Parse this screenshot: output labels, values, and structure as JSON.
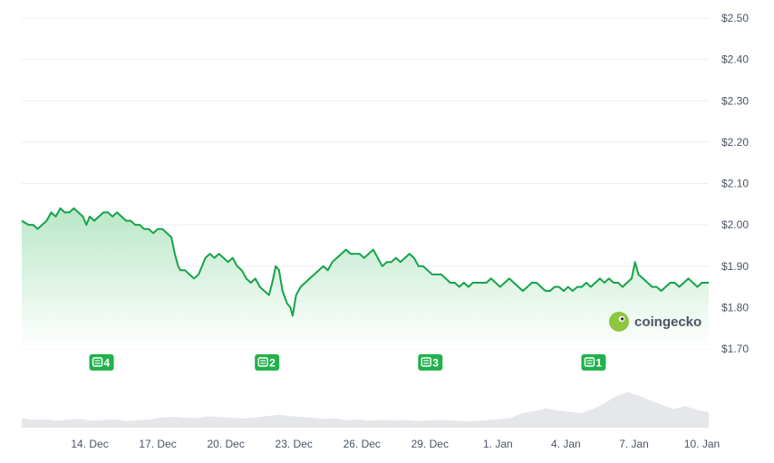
{
  "chart_data": {
    "type": "area",
    "y_ticks": [
      "$2.50",
      "$2.40",
      "$2.30",
      "$2.20",
      "$2.10",
      "$2.00",
      "$1.90",
      "$1.80",
      "$1.70"
    ],
    "ylim": [
      1.7,
      2.5
    ],
    "x_ticks": [
      "14. Dec",
      "17. Dec",
      "20. Dec",
      "23. Dec",
      "26. Dec",
      "29. Dec",
      "1. Jan",
      "4. Jan",
      "7. Jan",
      "10. Jan"
    ],
    "x_tick_days": [
      3,
      6,
      9,
      12,
      15,
      18,
      21,
      24,
      27,
      30
    ],
    "x_range_days": [
      0,
      30.3
    ],
    "line_color": "#16a34a",
    "area_top_color": "#b5e6c4",
    "volume_color": "#e6e7eb",
    "grid": true,
    "series": [
      {
        "points": [
          [
            0.0,
            2.01
          ],
          [
            0.3,
            2.0
          ],
          [
            0.5,
            2.0
          ],
          [
            0.7,
            1.99
          ],
          [
            0.9,
            2.0
          ],
          [
            1.1,
            2.01
          ],
          [
            1.3,
            2.03
          ],
          [
            1.5,
            2.02
          ],
          [
            1.7,
            2.04
          ],
          [
            1.9,
            2.03
          ],
          [
            2.1,
            2.03
          ],
          [
            2.3,
            2.04
          ],
          [
            2.5,
            2.03
          ],
          [
            2.7,
            2.02
          ],
          [
            2.85,
            2.0
          ],
          [
            3.0,
            2.02
          ],
          [
            3.2,
            2.01
          ],
          [
            3.4,
            2.02
          ],
          [
            3.6,
            2.03
          ],
          [
            3.8,
            2.03
          ],
          [
            4.0,
            2.02
          ],
          [
            4.2,
            2.03
          ],
          [
            4.4,
            2.02
          ],
          [
            4.6,
            2.01
          ],
          [
            4.8,
            2.01
          ],
          [
            5.0,
            2.0
          ],
          [
            5.2,
            2.0
          ],
          [
            5.4,
            1.99
          ],
          [
            5.6,
            1.99
          ],
          [
            5.8,
            1.98
          ],
          [
            6.0,
            1.99
          ],
          [
            6.2,
            1.99
          ],
          [
            6.4,
            1.98
          ],
          [
            6.6,
            1.97
          ],
          [
            6.75,
            1.93
          ],
          [
            6.9,
            1.9
          ],
          [
            7.0,
            1.89
          ],
          [
            7.2,
            1.89
          ],
          [
            7.4,
            1.88
          ],
          [
            7.6,
            1.87
          ],
          [
            7.8,
            1.88
          ],
          [
            7.95,
            1.9
          ],
          [
            8.1,
            1.92
          ],
          [
            8.3,
            1.93
          ],
          [
            8.5,
            1.92
          ],
          [
            8.7,
            1.93
          ],
          [
            8.9,
            1.92
          ],
          [
            9.1,
            1.91
          ],
          [
            9.3,
            1.92
          ],
          [
            9.5,
            1.9
          ],
          [
            9.7,
            1.89
          ],
          [
            9.9,
            1.87
          ],
          [
            10.1,
            1.86
          ],
          [
            10.3,
            1.87
          ],
          [
            10.5,
            1.85
          ],
          [
            10.7,
            1.84
          ],
          [
            10.9,
            1.83
          ],
          [
            11.05,
            1.86
          ],
          [
            11.2,
            1.9
          ],
          [
            11.35,
            1.89
          ],
          [
            11.5,
            1.84
          ],
          [
            11.7,
            1.81
          ],
          [
            11.85,
            1.8
          ],
          [
            11.95,
            1.78
          ],
          [
            12.1,
            1.83
          ],
          [
            12.3,
            1.85
          ],
          [
            12.5,
            1.86
          ],
          [
            12.7,
            1.87
          ],
          [
            12.9,
            1.88
          ],
          [
            13.1,
            1.89
          ],
          [
            13.3,
            1.9
          ],
          [
            13.5,
            1.89
          ],
          [
            13.7,
            1.91
          ],
          [
            13.9,
            1.92
          ],
          [
            14.1,
            1.93
          ],
          [
            14.3,
            1.94
          ],
          [
            14.5,
            1.93
          ],
          [
            14.7,
            1.93
          ],
          [
            14.9,
            1.93
          ],
          [
            15.1,
            1.92
          ],
          [
            15.3,
            1.93
          ],
          [
            15.5,
            1.94
          ],
          [
            15.7,
            1.92
          ],
          [
            15.9,
            1.9
          ],
          [
            16.1,
            1.91
          ],
          [
            16.3,
            1.91
          ],
          [
            16.5,
            1.92
          ],
          [
            16.7,
            1.91
          ],
          [
            16.9,
            1.92
          ],
          [
            17.1,
            1.93
          ],
          [
            17.3,
            1.92
          ],
          [
            17.5,
            1.9
          ],
          [
            17.7,
            1.9
          ],
          [
            17.9,
            1.89
          ],
          [
            18.1,
            1.88
          ],
          [
            18.3,
            1.88
          ],
          [
            18.5,
            1.88
          ],
          [
            18.7,
            1.87
          ],
          [
            18.9,
            1.86
          ],
          [
            19.1,
            1.86
          ],
          [
            19.3,
            1.85
          ],
          [
            19.5,
            1.86
          ],
          [
            19.7,
            1.85
          ],
          [
            19.9,
            1.86
          ],
          [
            20.1,
            1.86
          ],
          [
            20.3,
            1.86
          ],
          [
            20.5,
            1.86
          ],
          [
            20.7,
            1.87
          ],
          [
            20.9,
            1.86
          ],
          [
            21.1,
            1.85
          ],
          [
            21.3,
            1.86
          ],
          [
            21.5,
            1.87
          ],
          [
            21.7,
            1.86
          ],
          [
            21.9,
            1.85
          ],
          [
            22.1,
            1.84
          ],
          [
            22.3,
            1.85
          ],
          [
            22.5,
            1.86
          ],
          [
            22.7,
            1.86
          ],
          [
            22.9,
            1.85
          ],
          [
            23.1,
            1.84
          ],
          [
            23.3,
            1.84
          ],
          [
            23.5,
            1.85
          ],
          [
            23.7,
            1.85
          ],
          [
            23.9,
            1.84
          ],
          [
            24.1,
            1.85
          ],
          [
            24.3,
            1.84
          ],
          [
            24.5,
            1.85
          ],
          [
            24.7,
            1.85
          ],
          [
            24.9,
            1.86
          ],
          [
            25.1,
            1.85
          ],
          [
            25.3,
            1.86
          ],
          [
            25.5,
            1.87
          ],
          [
            25.7,
            1.86
          ],
          [
            25.9,
            1.87
          ],
          [
            26.1,
            1.86
          ],
          [
            26.3,
            1.86
          ],
          [
            26.5,
            1.85
          ],
          [
            26.7,
            1.86
          ],
          [
            26.9,
            1.87
          ],
          [
            27.05,
            1.91
          ],
          [
            27.2,
            1.88
          ],
          [
            27.4,
            1.87
          ],
          [
            27.6,
            1.86
          ],
          [
            27.8,
            1.85
          ],
          [
            28.0,
            1.85
          ],
          [
            28.2,
            1.84
          ],
          [
            28.4,
            1.85
          ],
          [
            28.6,
            1.86
          ],
          [
            28.8,
            1.86
          ],
          [
            29.0,
            1.85
          ],
          [
            29.2,
            1.86
          ],
          [
            29.4,
            1.87
          ],
          [
            29.6,
            1.86
          ],
          [
            29.8,
            1.85
          ],
          [
            30.0,
            1.86
          ],
          [
            30.3,
            1.86
          ]
        ]
      }
    ],
    "volume_profile": [
      3,
      2.5,
      2.6,
      2.2,
      2.5,
      2.8,
      2.2,
      2.4,
      2.6,
      2.1,
      2.3,
      2.6,
      3.2,
      3.4,
      3.1,
      3.0,
      3.6,
      3.3,
      3.1,
      2.9,
      3.2,
      3.6,
      4.1,
      3.7,
      3.4,
      3.1,
      2.8,
      2.9,
      2.4,
      2.6,
      2.2,
      2.5,
      2.3,
      2.4,
      2.1,
      2.3,
      2.5,
      2.2,
      2.0,
      2.1,
      2.4,
      2.7,
      3.1,
      4.6,
      5.2,
      6.1,
      5.4,
      5.0,
      4.6,
      5.8,
      7.6,
      9.8,
      11.2,
      10.1,
      8.6,
      7.1,
      5.9,
      6.8,
      5.6,
      4.9
    ]
  },
  "news_markers": [
    {
      "count": "4",
      "day": 3.5
    },
    {
      "count": "2",
      "day": 10.8
    },
    {
      "count": "3",
      "day": 18.0
    },
    {
      "count": "1",
      "day": 25.2
    }
  ],
  "watermark": {
    "brand": "coingecko"
  }
}
